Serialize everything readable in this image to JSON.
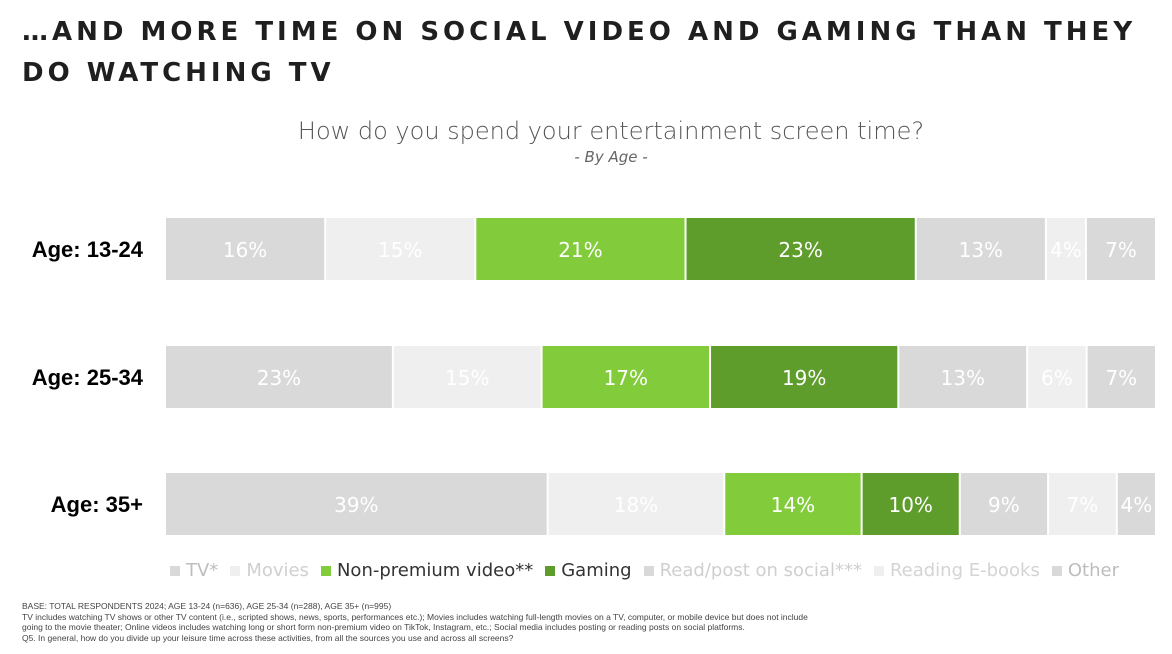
{
  "headline": "…AND MORE TIME ON SOCIAL VIDEO AND GAMING THAN THEY DO WATCHING TV",
  "chart_data": {
    "type": "bar",
    "orientation": "horizontal",
    "stacked": true,
    "normalized": true,
    "title": "How do you spend your entertainment screen time?",
    "subtitle": "- By Age -",
    "categories": [
      "Age: 13-24",
      "Age: 25-34",
      "Age: 35+"
    ],
    "series": [
      {
        "name": "TV*",
        "color": "#d9d9d9",
        "label_color": "#ffffff",
        "values": [
          16,
          23,
          39
        ],
        "labels": [
          "16%",
          "23%",
          "39%"
        ]
      },
      {
        "name": "Movies",
        "color": "#efefef",
        "label_color": "#ffffff",
        "values": [
          15,
          15,
          18
        ],
        "labels": [
          "15%",
          "15%",
          "18%"
        ]
      },
      {
        "name": "Non-premium video**",
        "color": "#82cc3b",
        "label_color": "#ffffff",
        "values": [
          21,
          17,
          14
        ],
        "labels": [
          "21%",
          "17%",
          "14%"
        ]
      },
      {
        "name": "Gaming",
        "color": "#5e9c2b",
        "label_color": "#ffffff",
        "values": [
          23,
          19,
          10
        ],
        "labels": [
          "23%",
          "19%",
          "10%"
        ]
      },
      {
        "name": "Read/post on social***",
        "color": "#d9d9d9",
        "label_color": "#ffffff",
        "values": [
          13,
          13,
          9
        ],
        "labels": [
          "13%",
          "13%",
          "9%"
        ]
      },
      {
        "name": "Reading E-books",
        "color": "#efefef",
        "label_color": "#ffffff",
        "values": [
          4,
          6,
          7
        ],
        "labels": [
          "4%",
          "6%",
          "7%"
        ]
      },
      {
        "name": "Other",
        "color": "#d9d9d9",
        "label_color": "#ffffff",
        "values": [
          7,
          7,
          4
        ],
        "labels": [
          "7%",
          "7%",
          "4%"
        ]
      }
    ],
    "legend_position": "bottom",
    "grid": false
  },
  "legend_text_colors": [
    "#bdbdbd",
    "#cfcfcf",
    "#333333",
    "#333333",
    "#cfcfcf",
    "#d4d4d4",
    "#bdbdbd"
  ],
  "footnotes": [
    "BASE: TOTAL RESPONDENTS 2024; AGE 13-24 (n=636), AGE 25-34 (n=288), AGE 35+ (n=995)",
    "TV includes watching TV shows or other TV content (i.e., scripted shows, news, sports, performances etc.); Movies includes watching full-length movies on a TV, computer, or mobile device but does not include",
    "going to the movie theater; Online videos includes watching long or short form non-premium video on TikTok, Instagram, etc.; Social media includes posting or reading posts on social platforms.",
    "Q5. In general, how do you divide up your leisure time across these activities, from all the sources you use and across all screens?"
  ]
}
